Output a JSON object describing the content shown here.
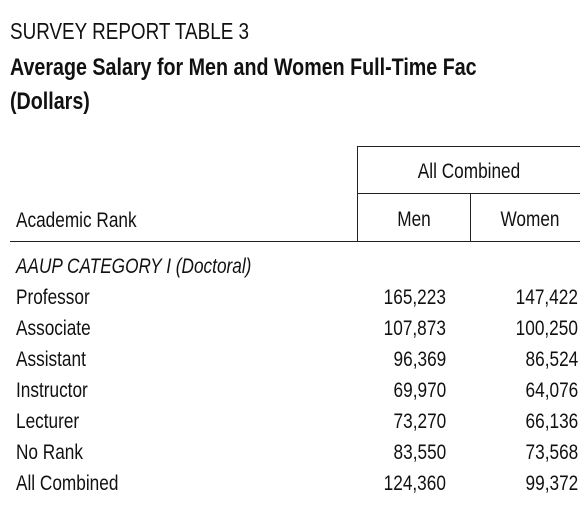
{
  "header": {
    "label": "SURVEY REPORT TABLE 3",
    "title": "Average Salary for Men and Women Full-Time Fac",
    "subtitle": "(Dollars)"
  },
  "table": {
    "group_header": "All Combined",
    "columns": [
      "Academic Rank",
      "Men",
      "Women"
    ],
    "section": "AAUP CATEGORY I (Doctoral)",
    "rows": [
      [
        "Professor",
        "165,223",
        "147,422"
      ],
      [
        "Associate",
        "107,873",
        "100,250"
      ],
      [
        "Assistant",
        "96,369",
        "86,524"
      ],
      [
        "Instructor",
        "69,970",
        "64,076"
      ],
      [
        "Lecturer",
        "73,270",
        "66,136"
      ],
      [
        "No Rank",
        "83,550",
        "73,568"
      ],
      [
        "All Combined",
        "124,360",
        "99,372"
      ]
    ]
  }
}
